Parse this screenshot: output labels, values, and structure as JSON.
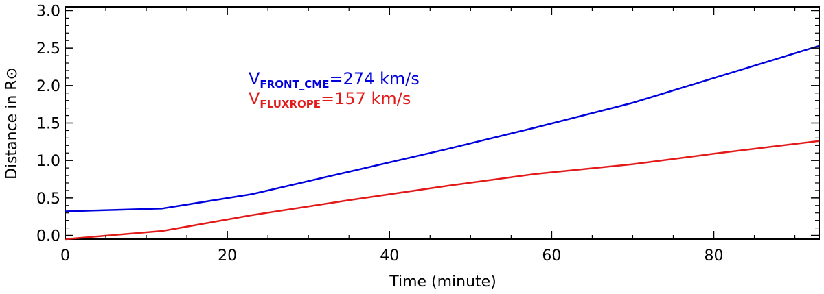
{
  "chart_data": {
    "type": "line",
    "xlabel": "Time (minute)",
    "ylabel": "Distance in R⊙",
    "xlim": [
      0,
      93
    ],
    "ylim": [
      -0.05,
      3.05
    ],
    "xticks": [
      0,
      20,
      40,
      60,
      80
    ],
    "yticks": [
      0.0,
      0.5,
      1.0,
      1.5,
      2.0,
      2.5,
      3.0
    ],
    "xtick_labels": [
      "0",
      "20",
      "40",
      "60",
      "80"
    ],
    "ytick_labels": [
      "0.0",
      "0.5",
      "1.0",
      "1.5",
      "2.0",
      "2.5",
      "3.0"
    ],
    "grid": false,
    "series": [
      {
        "color": "#0000dd",
        "x": [
          0,
          12,
          23,
          35,
          47,
          58,
          70,
          80,
          93
        ],
        "y": [
          0.32,
          0.36,
          0.55,
          0.85,
          1.15,
          1.44,
          1.77,
          2.1,
          2.53
        ]
      },
      {
        "color": "#e31a1a",
        "x": [
          0,
          12,
          23,
          35,
          47,
          58,
          70,
          80,
          93
        ],
        "y": [
          -0.05,
          0.06,
          0.27,
          0.47,
          0.66,
          0.82,
          0.95,
          1.09,
          1.26
        ]
      }
    ],
    "annotations": [
      {
        "main": "V",
        "sub": "FRONT_CME",
        "rest": "=274  km/s",
        "color": "#0000dd"
      },
      {
        "main": "V",
        "sub": "FLUXROPE",
        "rest": "=157  km/s",
        "color": "#e31a1a"
      }
    ]
  }
}
